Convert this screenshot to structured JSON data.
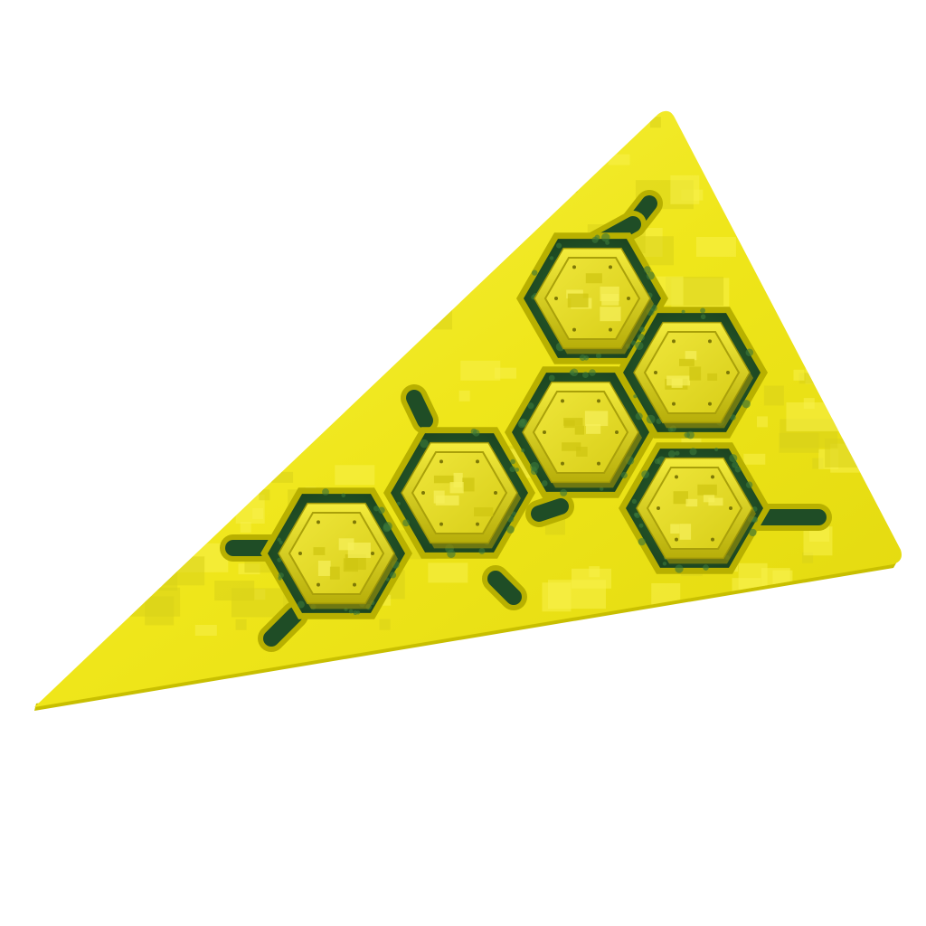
{
  "object": {
    "kind": "triangular-panel",
    "pattern": "digital-camo",
    "colors": {
      "panel": "#f2ea1a",
      "panel_edge": "#c8c000",
      "camo_light": "#f7f04a",
      "camo_dark": "#d9d21a",
      "channel": "#1f4d26",
      "channel_highlight": "#3c7a3a",
      "hex_face": "#e9df2a",
      "hex_rim": "#cfc512",
      "hex_shadow": "#8f8a0c",
      "background": "#ffffff"
    },
    "hex_tiles": [
      {
        "name": "hex-tile-1"
      },
      {
        "name": "hex-tile-2"
      },
      {
        "name": "hex-tile-3"
      },
      {
        "name": "hex-tile-4"
      },
      {
        "name": "hex-tile-5"
      },
      {
        "name": "hex-tile-6"
      }
    ]
  }
}
